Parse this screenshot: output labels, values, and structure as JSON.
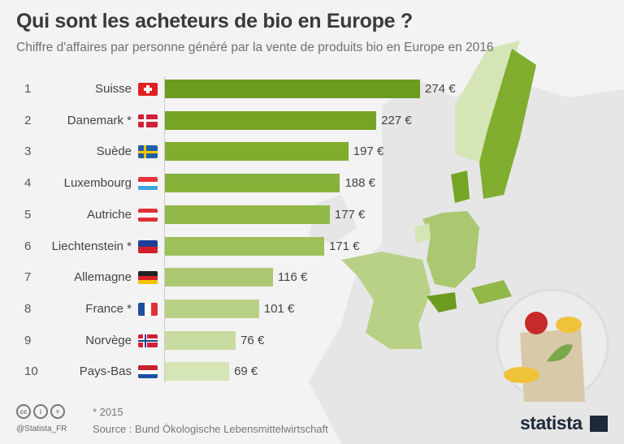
{
  "title": "Qui sont les acheteurs de bio en Europe ?",
  "subtitle": "Chiffre d'affaires par personne généré par la vente de produits bio en Europe en 2016",
  "chart_data": {
    "type": "bar",
    "orientation": "horizontal",
    "title": "Qui sont les acheteurs de bio en Europe ?",
    "subtitle": "Chiffre d'affaires par personne généré par la vente de produits bio en Europe en 2016",
    "unit": "€",
    "ranks": [
      "1",
      "2",
      "3",
      "4",
      "5",
      "6",
      "7",
      "8",
      "9",
      "10"
    ],
    "categories": [
      "Suisse",
      "Danemark *",
      "Suède",
      "Luxembourg",
      "Autriche",
      "Liechtenstein *",
      "Allemagne",
      "France *",
      "Norvège",
      "Pays-Bas"
    ],
    "values": [
      274,
      227,
      197,
      188,
      177,
      171,
      116,
      101,
      76,
      69
    ],
    "value_labels": [
      "274 €",
      "227 €",
      "197 €",
      "188 €",
      "177 €",
      "171 €",
      "116 €",
      "101 €",
      "76 €",
      "69 €"
    ],
    "flags": [
      "ch",
      "dk",
      "se",
      "lu",
      "at",
      "li",
      "de",
      "fr",
      "no",
      "nl"
    ],
    "colors": [
      "#6b9b1f",
      "#76a525",
      "#80ad2e",
      "#88b13a",
      "#92b84a",
      "#9dc05a",
      "#abc870",
      "#b9d186",
      "#c8dba0",
      "#d5e5b6"
    ],
    "xlim": [
      0,
      280
    ]
  },
  "footer": {
    "note": "* 2015",
    "source": "Source : Bund Ökologische Lebensmittelwirtschaft",
    "handle": "@Statista_FR",
    "logo": "statista",
    "license_icons": [
      "cc",
      "by",
      "nd"
    ]
  }
}
